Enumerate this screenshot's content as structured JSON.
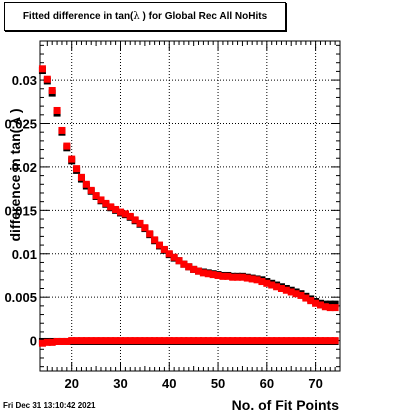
{
  "title": {
    "before": "Fitted difference in tan(",
    "symbol": "λ",
    "after": " ) for Global Rec All NoHits"
  },
  "footer": "Fri Dec 31 13:10:42 2021",
  "chart_data": {
    "type": "scatter",
    "title": "Fitted difference in tan( λ ) for Global Rec All NoHits",
    "xlabel": "No. of Fit Points",
    "ylabel": "difference in tan( λ )",
    "xlim": [
      13.5,
      75
    ],
    "ylim": [
      -0.0035,
      0.0345
    ],
    "x_ticks": [
      20,
      30,
      40,
      50,
      60,
      70
    ],
    "y_ticks": [
      0,
      0.005,
      0.01,
      0.015,
      0.02,
      0.025,
      0.03
    ],
    "y_tick_labels": [
      "0",
      "0.005",
      "0.01",
      "0.015",
      "0.02",
      "0.025",
      "0.03"
    ],
    "grid": true,
    "x": [
      14,
      15,
      16,
      17,
      18,
      19,
      20,
      21,
      22,
      23,
      24,
      25,
      26,
      27,
      28,
      29,
      30,
      31,
      32,
      33,
      34,
      35,
      36,
      37,
      38,
      39,
      40,
      41,
      42,
      43,
      44,
      45,
      46,
      47,
      48,
      49,
      50,
      51,
      52,
      53,
      54,
      55,
      56,
      57,
      58,
      59,
      60,
      61,
      62,
      63,
      64,
      65,
      66,
      67,
      68,
      69,
      70,
      71,
      72,
      73,
      74
    ],
    "series": [
      {
        "color": "#000000",
        "marker": "square",
        "values": [
          0.0311,
          0.0299,
          0.0285,
          0.0262,
          0.024,
          0.0222,
          0.0207,
          0.0196,
          0.0186,
          0.0178,
          0.0172,
          0.0166,
          0.0161,
          0.0157,
          0.0153,
          0.015,
          0.0147,
          0.0145,
          0.0142,
          0.0138,
          0.0134,
          0.0129,
          0.0122,
          0.0115,
          0.0109,
          0.0104,
          0.0099,
          0.0095,
          0.0092,
          0.0088,
          0.0085,
          0.0082,
          0.008,
          0.0079,
          0.0078,
          0.0077,
          0.0076,
          0.0075,
          0.0075,
          0.0074,
          0.0074,
          0.0074,
          0.0073,
          0.0072,
          0.0071,
          0.007,
          0.0068,
          0.0066,
          0.0064,
          0.0062,
          0.006,
          0.0058,
          0.0056,
          0.0054,
          0.0051,
          0.0048,
          0.0045,
          0.0043,
          0.0042,
          0.0042,
          0.0042
        ]
      },
      {
        "color": "#ff0000",
        "marker": "square",
        "values": [
          0.0313,
          0.0301,
          0.0288,
          0.0265,
          0.0242,
          0.0224,
          0.0209,
          0.0198,
          0.0188,
          0.018,
          0.0173,
          0.0167,
          0.0162,
          0.0158,
          0.0154,
          0.0151,
          0.0148,
          0.0146,
          0.0143,
          0.0139,
          0.0135,
          0.013,
          0.0123,
          0.0116,
          0.011,
          0.0105,
          0.01,
          0.0096,
          0.0092,
          0.0088,
          0.0085,
          0.0082,
          0.008,
          0.0078,
          0.0077,
          0.0076,
          0.0075,
          0.0074,
          0.0074,
          0.0073,
          0.0073,
          0.0073,
          0.0072,
          0.0071,
          0.007,
          0.0068,
          0.0066,
          0.0064,
          0.0062,
          0.006,
          0.0058,
          0.0056,
          0.0054,
          0.0052,
          0.0049,
          0.0046,
          0.0043,
          0.0041,
          0.0039,
          0.0038,
          0.0038
        ]
      },
      {
        "color": "#000000",
        "marker": "square",
        "values": [
          -0.0001,
          -0.0001,
          -0.0001,
          -0.0001,
          -0.0001,
          -0.0001,
          -0.0001,
          -0.0001,
          -0.0001,
          -0.0001,
          -0.0001,
          -0.0001,
          -0.0001,
          -0.0001,
          -0.0001,
          -0.0001,
          -0.0001,
          -0.0001,
          -0.0001,
          -0.0001,
          -0.0001,
          -0.0001,
          -0.0001,
          -0.0001,
          -0.0001,
          -0.0001,
          -0.0001,
          -0.0001,
          -0.0001,
          -0.0001,
          -0.0001,
          -0.0001,
          -0.0001,
          -0.0001,
          -0.0001,
          -0.0001,
          -0.0001,
          -0.0001,
          -0.0001,
          -0.0001,
          -0.0001,
          -0.0001,
          -0.0001,
          -0.0001,
          -0.0001,
          -0.0001,
          -0.0001,
          -0.0001,
          -0.0001,
          -0.0001,
          -0.0001,
          -0.0001,
          -0.0001,
          -0.0001,
          -0.0001,
          -0.0001,
          -0.0001,
          -0.0001,
          -0.0001,
          -0.0001,
          -0.0001
        ]
      },
      {
        "color": "#ff0000",
        "marker": "square",
        "values": [
          -0.0003,
          -0.0002,
          -0.0002,
          -0.0001,
          -0.0001,
          -0.0001,
          0.0,
          0.0,
          0.0,
          0.0,
          0.0,
          0.0,
          0.0,
          0.0,
          0.0,
          0.0,
          0.0,
          0.0,
          0.0,
          0.0,
          0.0,
          0.0,
          0.0,
          0.0,
          0.0,
          0.0,
          0.0,
          0.0,
          0.0,
          0.0,
          0.0,
          0.0,
          0.0,
          0.0,
          0.0,
          0.0,
          0.0,
          0.0,
          0.0,
          0.0,
          0.0,
          0.0,
          0.0,
          0.0,
          0.0,
          0.0,
          0.0,
          0.0,
          0.0,
          0.0,
          0.0,
          0.0,
          0.0,
          0.0,
          0.0,
          0.0,
          0.0,
          0.0,
          0.0,
          0.0,
          0.0
        ]
      }
    ]
  }
}
